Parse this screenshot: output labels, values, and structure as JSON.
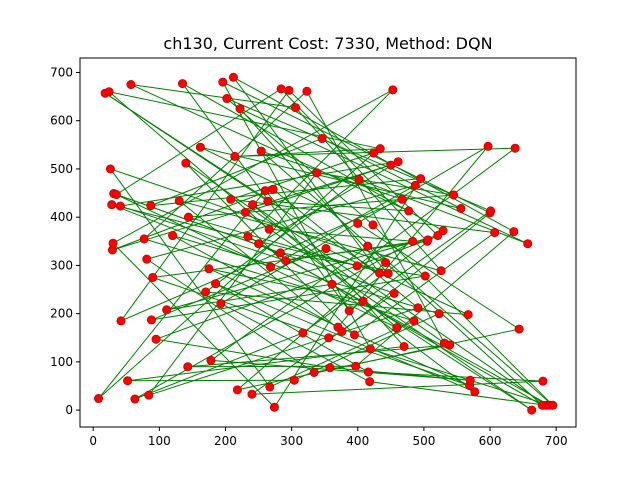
{
  "title": "ch130, Current Cost: 7330, Method: DQN",
  "chart_data": {
    "type": "scatter",
    "title": "ch130, Current Cost: 7330, Method: DQN",
    "xlabel": "",
    "ylabel": "",
    "xlim": [
      -20,
      730
    ],
    "ylim": [
      -35,
      730
    ],
    "xticks": [
      0,
      100,
      200,
      300,
      400,
      500,
      600,
      700
    ],
    "yticks": [
      0,
      100,
      200,
      300,
      400,
      500,
      600,
      700
    ],
    "grid": false,
    "colors": {
      "points": "#ff0000",
      "edges": "#008000"
    },
    "series": [
      {
        "marker": "points",
        "x": [
          8,
          18,
          24,
          26,
          28,
          29,
          30,
          31,
          35,
          41,
          42,
          52,
          57,
          63,
          77,
          81,
          84,
          87,
          88,
          90,
          95,
          111,
          120,
          130,
          135,
          140,
          143,
          144,
          162,
          170,
          175,
          178,
          185,
          193,
          196,
          202,
          208,
          212,
          214,
          218,
          222,
          230,
          234,
          240,
          241,
          250,
          254,
          260,
          264,
          266,
          267,
          268,
          272,
          274,
          283,
          284,
          291,
          296,
          304,
          306,
          317,
          323,
          334,
          338,
          346,
          352,
          356,
          358,
          361,
          370,
          376,
          387,
          395,
          397,
          399,
          400,
          402,
          408,
          415,
          416,
          418,
          419,
          423,
          424,
          433,
          434,
          442,
          446,
          450,
          453,
          455,
          459,
          461,
          467,
          470,
          477,
          483,
          485,
          487,
          491,
          495,
          502,
          505,
          506,
          521,
          523,
          526,
          529,
          531,
          539,
          545,
          556,
          567,
          569,
          570,
          577,
          597,
          600,
          601,
          607,
          636,
          638,
          644,
          657,
          663,
          679,
          680,
          685,
          690,
          695
        ],
        "y": [
          24,
          657,
          660,
          500,
          426,
          332,
          346,
          449,
          447,
          423,
          185,
          61,
          675,
          23,
          355,
          313,
          31,
          424,
          187,
          275,
          147,
          208,
          362,
          434,
          677,
          512,
          90,
          400,
          545,
          245,
          293,
          103,
          262,
          221,
          680,
          646,
          437,
          690,
          526,
          42,
          625,
          410,
          360,
          33,
          426,
          345,
          537,
          455,
          433,
          375,
          48,
          297,
          458,
          6,
          326,
          666,
          310,
          663,
          62,
          627,
          160,
          661,
          78,
          492,
          563,
          335,
          150,
          88,
          261,
          172,
          163,
          206,
          156,
          91,
          299,
          387,
          478,
          226,
          340,
          79,
          59,
          127,
          384,
          533,
          284,
          542,
          306,
          283,
          508,
          664,
          242,
          171,
          515,
          437,
          132,
          413,
          350,
          185,
          466,
          212,
          480,
          278,
          350,
          353,
          362,
          200,
          289,
          372,
          139,
          135,
          446,
          418,
          198,
          51,
          62,
          38,
          547,
          409,
          413,
          368,
          370,
          543,
          168,
          345,
          0,
          10,
          60,
          10,
          10,
          10
        ]
      }
    ]
  }
}
